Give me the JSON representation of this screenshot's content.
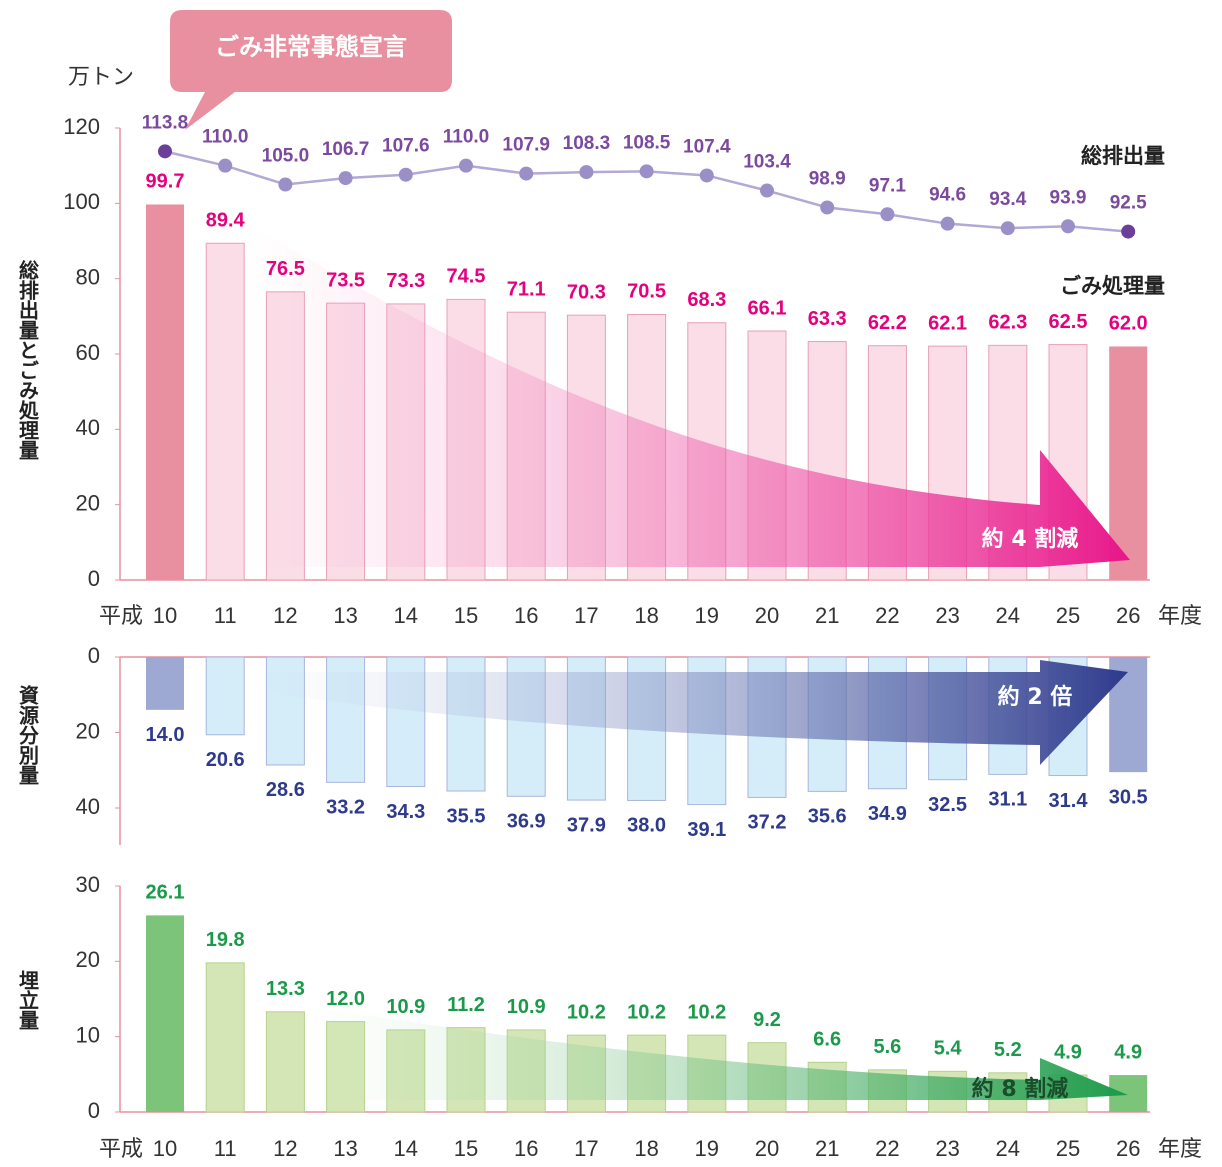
{
  "banner": "ごみ非常事態宣言",
  "unit": "万トン",
  "x_prefix": "平成",
  "x_suffix": "年度",
  "chart_data": [
    {
      "type": "bar",
      "ylabel": "総排出量とごみ処理量",
      "annotation": "約 4 割減",
      "categories": [
        "10",
        "11",
        "12",
        "13",
        "14",
        "15",
        "16",
        "17",
        "18",
        "19",
        "20",
        "21",
        "22",
        "23",
        "24",
        "25",
        "26"
      ],
      "ylim": [
        0,
        120
      ],
      "yticks": [
        0,
        20,
        40,
        60,
        80,
        100,
        120
      ],
      "series": [
        {
          "name": "ごみ処理量",
          "type": "bar",
          "color": "#fadde7",
          "stroke": "#e8a0b4",
          "highlight_color": "#e8909f",
          "label_color": "#e5007f",
          "values": [
            99.7,
            89.4,
            76.5,
            73.5,
            73.3,
            74.5,
            71.1,
            70.3,
            70.5,
            68.3,
            66.1,
            63.3,
            62.2,
            62.1,
            62.3,
            62.5,
            62.0
          ],
          "value_labels": [
            "99.7",
            "89.4",
            "76.5",
            "73.5",
            "73.3",
            "74.5",
            "71.1",
            "70.3",
            "70.5",
            "68.3",
            "66.1",
            "63.3",
            "62.2",
            "62.1",
            "62.3",
            "62.5",
            "62.0"
          ]
        },
        {
          "name": "総排出量",
          "type": "line",
          "color": "#b3a8d6",
          "marker_color": "#9b8fc8",
          "highlight_color": "#6b3f98",
          "label_color": "#7b4a9e",
          "values": [
            113.8,
            110.0,
            105.0,
            106.7,
            107.6,
            110.0,
            107.9,
            108.3,
            108.5,
            107.4,
            103.4,
            98.9,
            97.1,
            94.6,
            93.4,
            93.9,
            92.5
          ],
          "value_labels": [
            "113.8",
            "110.0",
            "105.0",
            "106.7",
            "107.6",
            "110.0",
            "107.9",
            "108.3",
            "108.5",
            "107.4",
            "103.4",
            "98.9",
            "97.1",
            "94.6",
            "93.4",
            "93.9",
            "92.5"
          ]
        }
      ]
    },
    {
      "type": "bar",
      "ylabel": "資源分別量",
      "annotation": "約 2 倍",
      "inverted": true,
      "ylim": [
        0,
        40
      ],
      "yticks": [
        0,
        20,
        40
      ],
      "color": "#d5ecf9",
      "stroke": "#a9b6dc",
      "highlight_color": "#9da8d3",
      "label_color": "#2e3a8c",
      "values": [
        14.0,
        20.6,
        28.6,
        33.2,
        34.3,
        35.5,
        36.9,
        37.9,
        38.0,
        39.1,
        37.2,
        35.6,
        34.9,
        32.5,
        31.1,
        31.4,
        30.5
      ],
      "value_labels": [
        "14.0",
        "20.6",
        "28.6",
        "33.2",
        "34.3",
        "35.5",
        "36.9",
        "37.9",
        "38.0",
        "39.1",
        "37.2",
        "35.6",
        "34.9",
        "32.5",
        "31.1",
        "31.4",
        "30.5"
      ]
    },
    {
      "type": "bar",
      "ylabel": "埋立量",
      "annotation": "約 8 割減",
      "categories": [
        "10",
        "11",
        "12",
        "13",
        "14",
        "15",
        "16",
        "17",
        "18",
        "19",
        "20",
        "21",
        "22",
        "23",
        "24",
        "25",
        "26"
      ],
      "ylim": [
        0,
        30
      ],
      "yticks": [
        0,
        10,
        20,
        30
      ],
      "color": "#d4e6b5",
      "stroke": "#b5d28c",
      "highlight_color": "#7cc47a",
      "label_color": "#1a9a4a",
      "values": [
        26.1,
        19.8,
        13.3,
        12.0,
        10.9,
        11.2,
        10.9,
        10.2,
        10.2,
        10.2,
        9.2,
        6.6,
        5.6,
        5.4,
        5.2,
        4.9,
        4.9
      ],
      "value_labels": [
        "26.1",
        "19.8",
        "13.3",
        "12.0",
        "10.9",
        "11.2",
        "10.9",
        "10.2",
        "10.2",
        "10.2",
        "9.2",
        "6.6",
        "5.6",
        "5.4",
        "5.2",
        "4.9",
        "4.9"
      ]
    }
  ]
}
